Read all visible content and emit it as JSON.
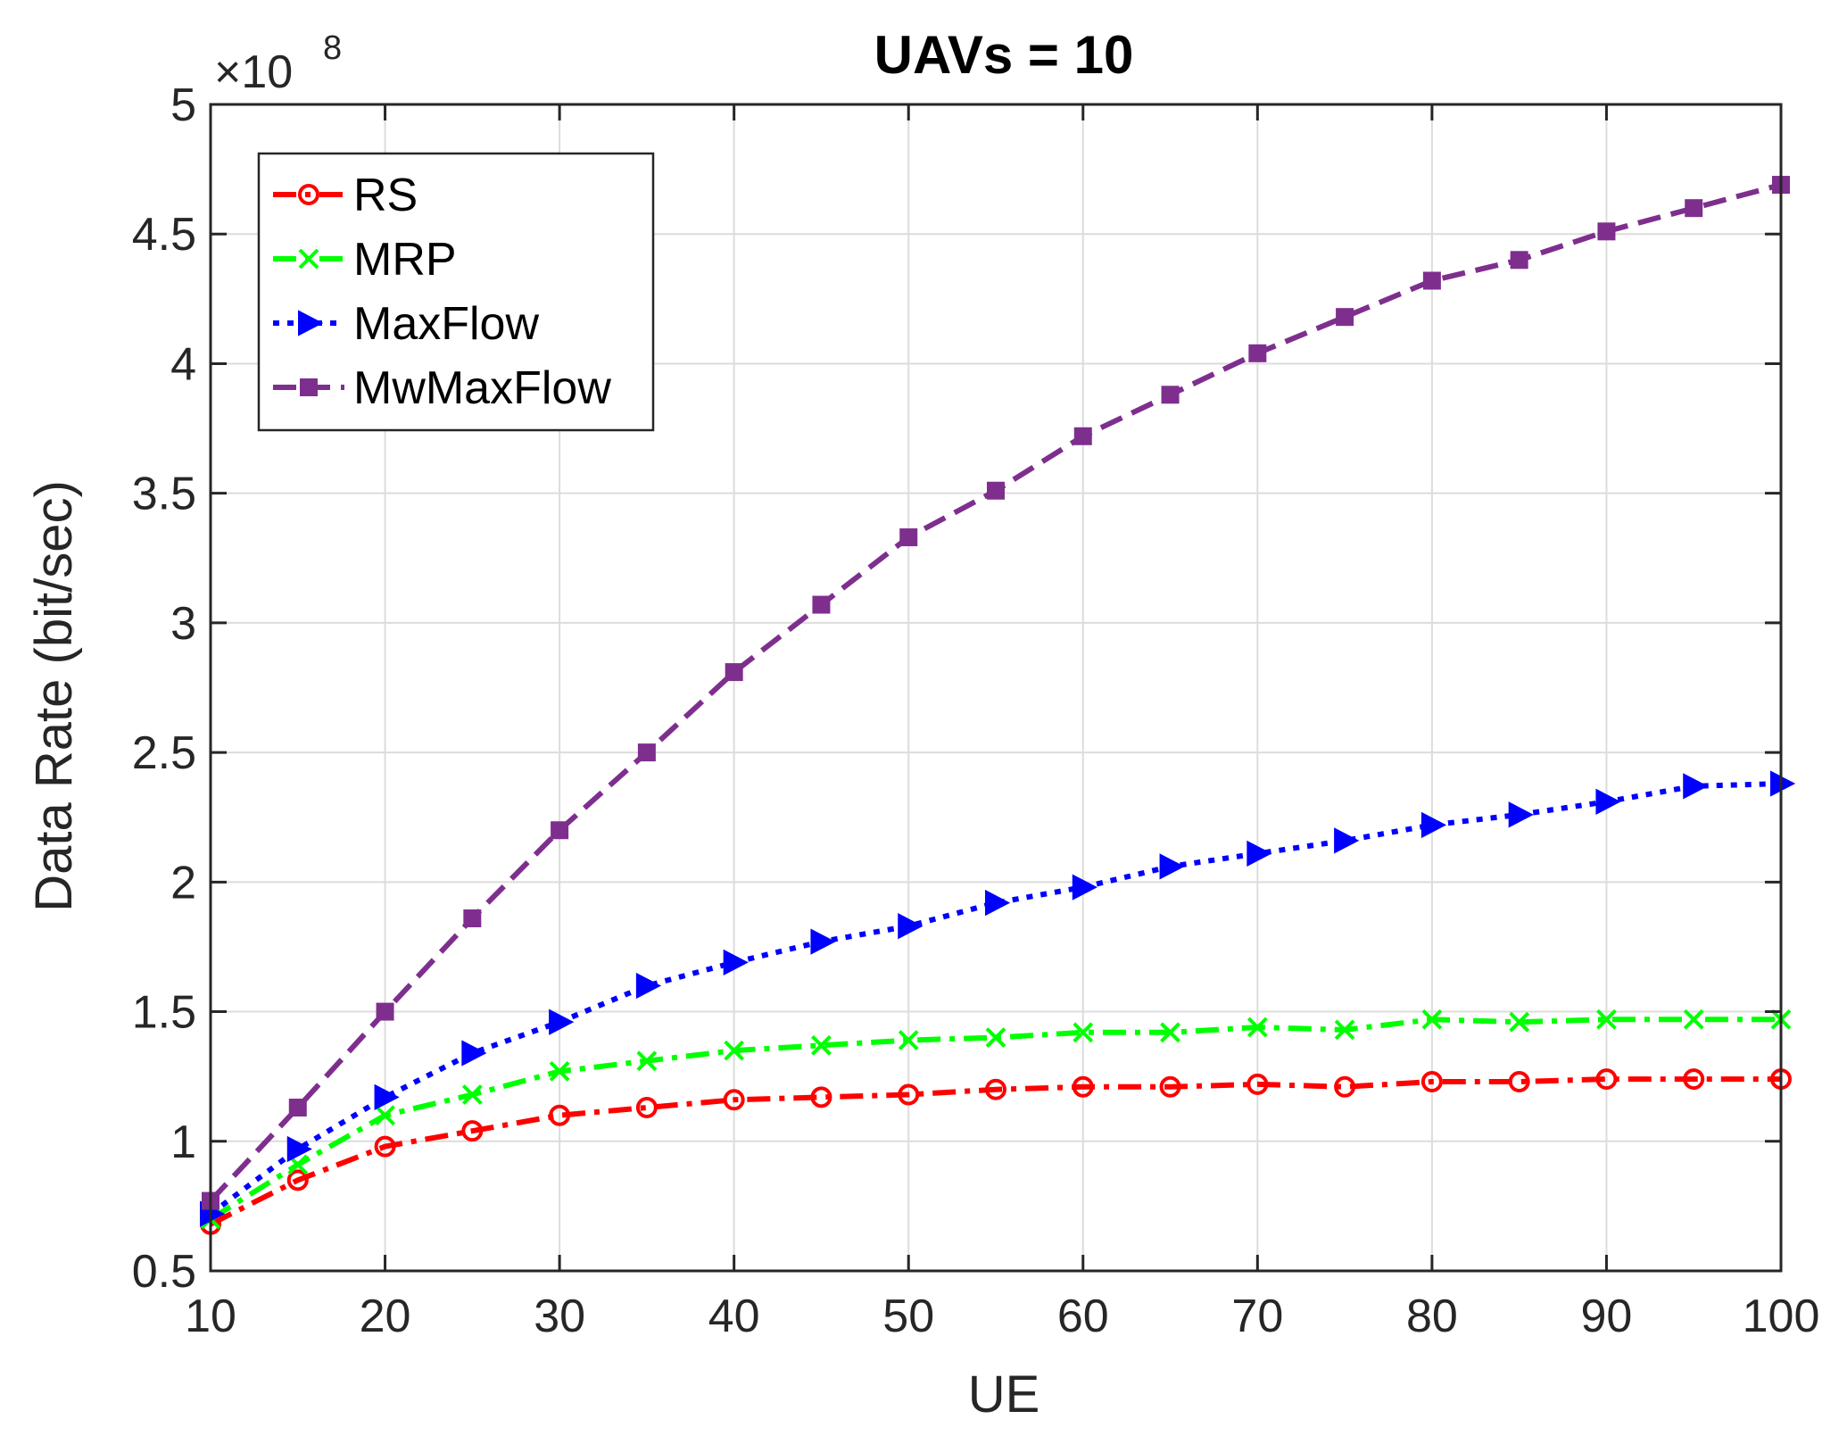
{
  "chart_data": {
    "type": "line",
    "title": "UAVs = 10",
    "xlabel": "UE",
    "ylabel": "Data Rate (bit/sec)",
    "y_multiplier_label": "×10",
    "y_multiplier_exponent": "8",
    "xlim": [
      10,
      100
    ],
    "ylim": [
      0.5,
      5
    ],
    "xticks": [
      10,
      20,
      30,
      40,
      50,
      60,
      70,
      80,
      90,
      100
    ],
    "xtick_labels": [
      "10",
      "20",
      "30",
      "40",
      "50",
      "60",
      "70",
      "80",
      "90",
      "100"
    ],
    "yticks": [
      0.5,
      1,
      1.5,
      2,
      2.5,
      3,
      3.5,
      4,
      4.5,
      5
    ],
    "ytick_labels": [
      "0.5",
      "1",
      "1.5",
      "2",
      "2.5",
      "3",
      "3.5",
      "4",
      "4.5",
      "5"
    ],
    "grid": true,
    "legend_position": "top-left",
    "x": [
      10,
      15,
      20,
      25,
      30,
      35,
      40,
      45,
      50,
      55,
      60,
      65,
      70,
      75,
      80,
      85,
      90,
      95,
      100
    ],
    "series": [
      {
        "name": "RS",
        "color": "#ff0000",
        "marker": "circle",
        "linestyle": "dash-dot",
        "values": [
          0.68,
          0.85,
          0.98,
          1.04,
          1.1,
          1.13,
          1.16,
          1.17,
          1.18,
          1.2,
          1.21,
          1.21,
          1.22,
          1.21,
          1.23,
          1.23,
          1.24,
          1.24,
          1.24
        ]
      },
      {
        "name": "MRP",
        "color": "#00ff00",
        "marker": "x",
        "linestyle": "dash-dot",
        "values": [
          0.7,
          0.91,
          1.1,
          1.18,
          1.27,
          1.31,
          1.35,
          1.37,
          1.39,
          1.4,
          1.42,
          1.42,
          1.44,
          1.43,
          1.47,
          1.46,
          1.47,
          1.47,
          1.47
        ]
      },
      {
        "name": "MaxFlow",
        "color": "#0000ff",
        "marker": "triangle-right",
        "linestyle": "dotted",
        "values": [
          0.72,
          0.97,
          1.17,
          1.34,
          1.46,
          1.6,
          1.69,
          1.77,
          1.83,
          1.92,
          1.98,
          2.06,
          2.11,
          2.16,
          2.22,
          2.26,
          2.31,
          2.37,
          2.38
        ]
      },
      {
        "name": "MwMaxFlow",
        "color": "#7e2f8e",
        "marker": "square",
        "linestyle": "dashed",
        "values": [
          0.77,
          1.13,
          1.5,
          1.86,
          2.2,
          2.5,
          2.81,
          3.07,
          3.33,
          3.51,
          3.72,
          3.88,
          4.04,
          4.18,
          4.32,
          4.4,
          4.51,
          4.6,
          4.69
        ]
      }
    ]
  }
}
